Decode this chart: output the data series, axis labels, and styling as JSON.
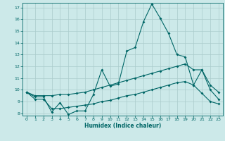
{
  "title": "",
  "xlabel": "Humidex (Indice chaleur)",
  "background_color": "#cce9e9",
  "grid_color": "#aacccc",
  "line_color": "#006666",
  "xlim_min": -0.5,
  "xlim_max": 23.5,
  "ylim_min": 7.8,
  "ylim_max": 17.4,
  "xticks": [
    0,
    1,
    2,
    3,
    4,
    5,
    6,
    7,
    8,
    9,
    10,
    11,
    12,
    13,
    14,
    15,
    16,
    17,
    18,
    19,
    20,
    21,
    22,
    23
  ],
  "yticks": [
    8,
    9,
    10,
    11,
    12,
    13,
    14,
    15,
    16,
    17
  ],
  "line1_x": [
    0,
    1,
    2,
    3,
    4,
    5,
    6,
    7,
    8,
    9,
    10,
    11,
    12,
    13,
    14,
    15,
    16,
    17,
    18,
    19,
    20,
    21,
    22,
    23
  ],
  "line1_y": [
    9.8,
    9.4,
    9.4,
    8.1,
    8.9,
    7.9,
    8.2,
    8.2,
    9.6,
    11.7,
    10.3,
    10.5,
    13.3,
    13.6,
    15.8,
    17.3,
    16.1,
    14.8,
    13.0,
    12.8,
    10.4,
    11.7,
    10.0,
    9.2
  ],
  "line2_x": [
    0,
    1,
    2,
    3,
    4,
    5,
    6,
    7,
    8,
    9,
    10,
    11,
    12,
    13,
    14,
    15,
    16,
    17,
    18,
    19,
    20,
    21,
    22,
    23
  ],
  "line2_y": [
    9.8,
    9.5,
    9.5,
    9.5,
    9.6,
    9.6,
    9.7,
    9.8,
    10.0,
    10.2,
    10.4,
    10.6,
    10.8,
    11.0,
    11.2,
    11.4,
    11.6,
    11.8,
    12.0,
    12.2,
    11.7,
    11.7,
    10.4,
    9.8
  ],
  "line3_x": [
    0,
    1,
    2,
    3,
    4,
    5,
    6,
    7,
    8,
    9,
    10,
    11,
    12,
    13,
    14,
    15,
    16,
    17,
    18,
    19,
    20,
    21,
    22,
    23
  ],
  "line3_y": [
    9.8,
    9.2,
    9.2,
    8.4,
    8.4,
    8.5,
    8.6,
    8.7,
    8.8,
    9.0,
    9.1,
    9.3,
    9.5,
    9.6,
    9.8,
    10.0,
    10.2,
    10.4,
    10.6,
    10.7,
    10.4,
    9.7,
    9.0,
    8.8
  ]
}
